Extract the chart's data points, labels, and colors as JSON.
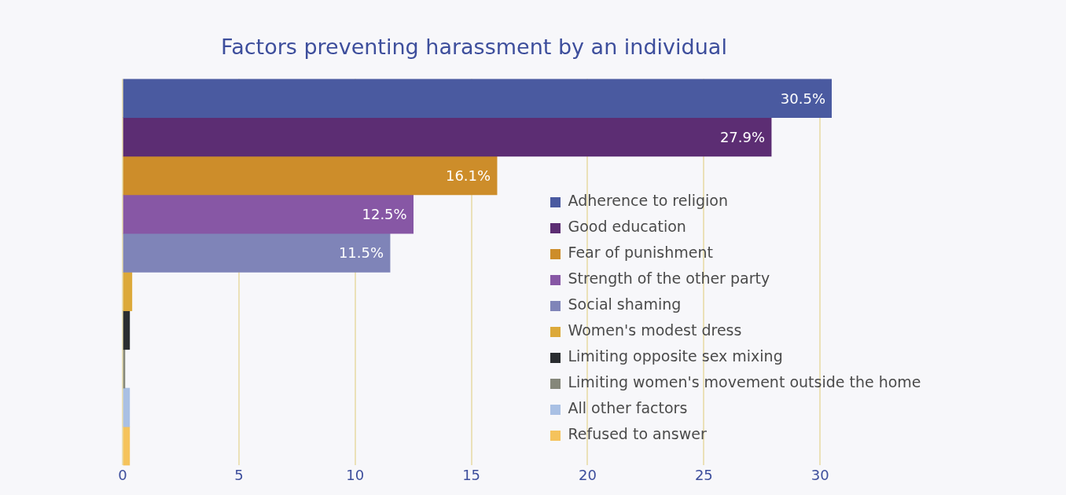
{
  "chart_data": {
    "type": "bar",
    "orientation": "horizontal",
    "stacked": true,
    "title": "Factors preventing harassment by an individual",
    "categories": [
      null,
      null,
      null,
      null,
      null,
      null,
      null,
      null,
      null,
      null
    ],
    "series": [
      {
        "name": "Adherence to religion",
        "color": "#4a5aa0",
        "values": [
          30.5,
          null,
          null,
          null,
          null,
          null,
          null,
          null,
          null,
          null
        ],
        "value_labels": [
          "30.5%",
          null,
          null,
          null,
          null,
          null,
          null,
          null,
          null,
          null
        ]
      },
      {
        "name": "Good education",
        "color": "#5c2d73",
        "values": [
          null,
          27.9,
          null,
          null,
          null,
          null,
          null,
          null,
          null,
          null
        ],
        "value_labels": [
          null,
          "27.9%",
          null,
          null,
          null,
          null,
          null,
          null,
          null,
          null
        ]
      },
      {
        "name": "Fear of punishment",
        "color": "#cd8d2a",
        "values": [
          null,
          null,
          16.1,
          null,
          null,
          null,
          null,
          null,
          null,
          null
        ],
        "value_labels": [
          null,
          null,
          "16.1%",
          null,
          null,
          null,
          null,
          null,
          null,
          null
        ]
      },
      {
        "name": "Strength of the other party",
        "color": "#8757a5",
        "values": [
          null,
          null,
          null,
          12.5,
          null,
          null,
          null,
          null,
          null,
          null
        ],
        "value_labels": [
          null,
          null,
          null,
          "12.5%",
          null,
          null,
          null,
          null,
          null,
          null
        ]
      },
      {
        "name": "Social shaming",
        "color": "#7f84b8",
        "values": [
          null,
          null,
          null,
          null,
          11.5,
          null,
          null,
          null,
          null,
          null
        ],
        "value_labels": [
          null,
          null,
          null,
          null,
          "11.5%",
          null,
          null,
          null,
          null,
          null
        ]
      },
      {
        "name": "Women's modest dress",
        "color": "#dca93a",
        "values": [
          null,
          null,
          null,
          null,
          null,
          0.4,
          null,
          null,
          null,
          null
        ]
      },
      {
        "name": "Limiting opposite sex mixing",
        "color": "#2a2d30",
        "values": [
          null,
          null,
          null,
          null,
          null,
          null,
          0.3,
          null,
          null,
          null
        ]
      },
      {
        "name": "Limiting women's movement outside the home",
        "color": "#85877a",
        "values": [
          null,
          null,
          null,
          null,
          null,
          null,
          null,
          0.1,
          null,
          null
        ]
      },
      {
        "name": "All other factors",
        "color": "#a9c0e4",
        "values": [
          null,
          null,
          null,
          null,
          null,
          null,
          null,
          null,
          0.3,
          null
        ]
      },
      {
        "name": "Refused to answer",
        "color": "#f5c35c",
        "values": [
          null,
          null,
          null,
          null,
          null,
          null,
          null,
          null,
          null,
          0.3
        ]
      }
    ],
    "xlim": [
      0,
      30.5
    ],
    "xticks": [
      0,
      5,
      10,
      15,
      20,
      25,
      30
    ],
    "grid": "x",
    "legend": "right",
    "tick_labels": "x"
  }
}
